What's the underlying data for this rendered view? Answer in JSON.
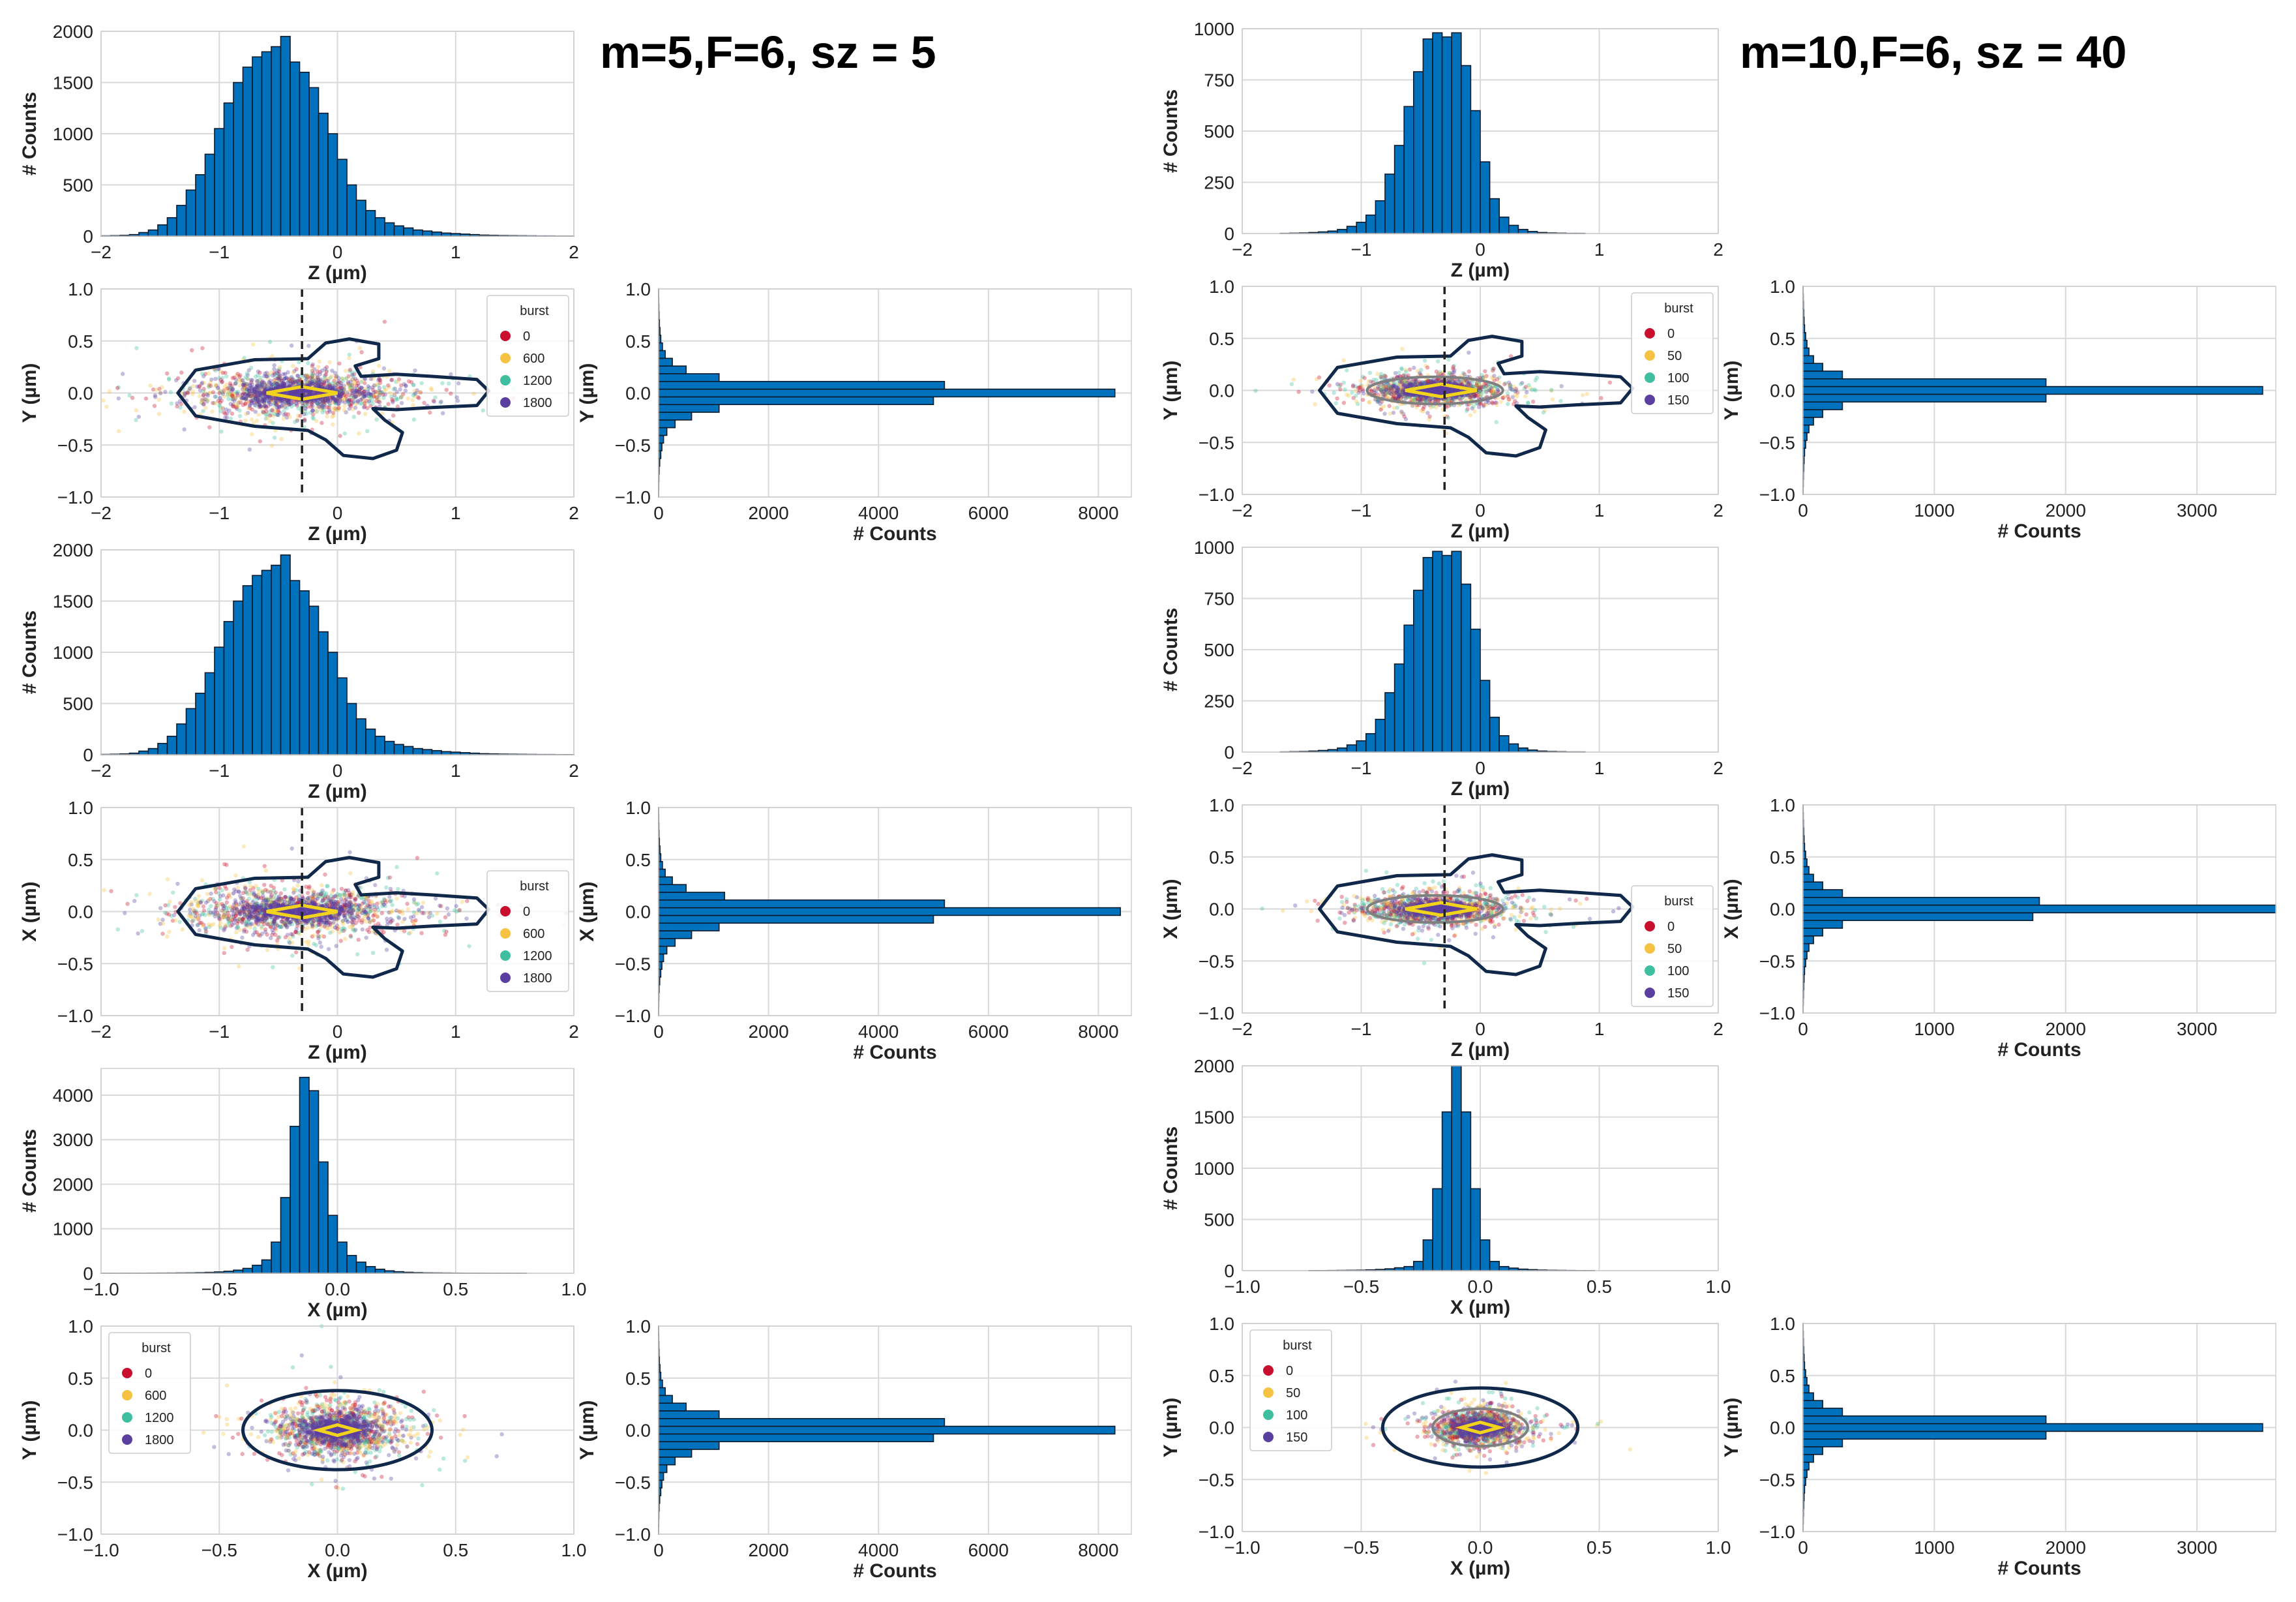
{
  "colors": {
    "bar_fill": "#0072BD",
    "bar_edge": "#0d1a2b",
    "grid": "#d9d9d9",
    "contour_outer": "#10284a",
    "contour_mid": "#7f7f7f",
    "contour_inner": "#f2d31b",
    "dashed_line": "#222222",
    "burst": [
      "#c8102e",
      "#f5c242",
      "#3fbf9f",
      "#5b3fa0"
    ]
  },
  "titles": {
    "left": "m=5,F=6, sz = 5",
    "right": "m=10,F=6, sz = 40"
  },
  "chart_data": [
    {
      "id": "L-hist-z-1",
      "type": "bar",
      "title": "",
      "xlabel": "Z (µm)",
      "ylabel": "# Counts",
      "xlim": [
        -2,
        2
      ],
      "ylim": [
        0,
        2000
      ],
      "xticks": [
        -2,
        -1,
        0,
        1,
        2
      ],
      "yticks": [
        0,
        500,
        1000,
        1500,
        2000
      ],
      "bin_edges": [
        -2,
        2
      ],
      "bins": 50,
      "values": [
        3,
        5,
        8,
        15,
        35,
        60,
        110,
        180,
        300,
        450,
        600,
        800,
        1050,
        1300,
        1500,
        1650,
        1750,
        1800,
        1850,
        1950,
        1700,
        1600,
        1450,
        1200,
        1000,
        750,
        500,
        350,
        250,
        180,
        130,
        100,
        80,
        60,
        50,
        40,
        30,
        25,
        20,
        15,
        10,
        8,
        6,
        5,
        4,
        3,
        2,
        2,
        1,
        1
      ]
    },
    {
      "id": "L-scatter-yz",
      "type": "scatter",
      "xlabel": "Z (µm)",
      "ylabel": "Y (µm)",
      "xlim": [
        -2,
        2
      ],
      "ylim": [
        -1,
        1
      ],
      "xticks": [
        -2,
        -1,
        0,
        1,
        2
      ],
      "yticks": [
        -1.0,
        -0.5,
        0.0,
        0.5,
        1.0
      ],
      "shape": "lobed",
      "vline_x": -0.3,
      "center": [
        -0.35,
        0
      ],
      "spread": [
        0.45,
        0.11
      ],
      "legend": {
        "title": "burst",
        "position": "upper-right",
        "labels": [
          "0",
          "600",
          "1200",
          "1800"
        ]
      }
    },
    {
      "id": "L-hist-y-1",
      "type": "bar",
      "orientation": "horizontal",
      "xlabel": "# Counts",
      "ylabel": "Y (µm)",
      "xlim": [
        0,
        8600
      ],
      "ylim": [
        -1,
        1
      ],
      "xticks": [
        0,
        2000,
        4000,
        6000,
        8000
      ],
      "yticks": [
        -1.0,
        -0.5,
        0.0,
        0.5,
        1.0
      ],
      "bin_edges": [
        -1,
        1
      ],
      "bins": 27,
      "values": [
        2,
        3,
        5,
        10,
        20,
        40,
        60,
        90,
        150,
        300,
        600,
        1100,
        5000,
        8300,
        5200,
        1100,
        500,
        250,
        120,
        70,
        40,
        25,
        15,
        8,
        5,
        3,
        2
      ]
    },
    {
      "id": "L-hist-z-2",
      "type": "bar",
      "xlabel": "Z (µm)",
      "ylabel": "# Counts",
      "xlim": [
        -2,
        2
      ],
      "ylim": [
        0,
        2000
      ],
      "xticks": [
        -2,
        -1,
        0,
        1,
        2
      ],
      "yticks": [
        0,
        500,
        1000,
        1500,
        2000
      ],
      "bin_edges": [
        -2,
        2
      ],
      "bins": 50,
      "values": [
        3,
        5,
        8,
        15,
        35,
        60,
        110,
        180,
        300,
        450,
        600,
        800,
        1050,
        1300,
        1500,
        1650,
        1750,
        1800,
        1850,
        1950,
        1700,
        1600,
        1450,
        1200,
        1000,
        750,
        500,
        350,
        250,
        180,
        130,
        100,
        80,
        60,
        50,
        40,
        30,
        25,
        20,
        15,
        10,
        8,
        6,
        5,
        4,
        3,
        2,
        2,
        1,
        1
      ]
    },
    {
      "id": "L-scatter-xz",
      "type": "scatter",
      "xlabel": "Z (µm)",
      "ylabel": "X (µm)",
      "xlim": [
        -2,
        2
      ],
      "ylim": [
        -1,
        1
      ],
      "xticks": [
        -2,
        -1,
        0,
        1,
        2
      ],
      "yticks": [
        -1.0,
        -0.5,
        0.0,
        0.5,
        1.0
      ],
      "shape": "lobed",
      "vline_x": -0.3,
      "center": [
        -0.35,
        0
      ],
      "spread": [
        0.45,
        0.11
      ],
      "legend": {
        "title": "burst",
        "position": "right",
        "labels": [
          "0",
          "600",
          "1200",
          "1800"
        ]
      }
    },
    {
      "id": "L-hist-x-1",
      "type": "bar",
      "orientation": "horizontal",
      "xlabel": "# Counts",
      "ylabel": "X (µm)",
      "xlim": [
        0,
        8600
      ],
      "ylim": [
        -1,
        1
      ],
      "xticks": [
        0,
        2000,
        4000,
        6000,
        8000
      ],
      "yticks": [
        -1.0,
        -0.5,
        0.0,
        0.5,
        1.0
      ],
      "bin_edges": [
        -1,
        1
      ],
      "bins": 27,
      "values": [
        2,
        3,
        5,
        10,
        20,
        40,
        60,
        90,
        150,
        300,
        600,
        1100,
        5000,
        8400,
        5200,
        1200,
        500,
        250,
        120,
        70,
        40,
        25,
        15,
        8,
        5,
        3,
        2
      ]
    },
    {
      "id": "L-hist-x-2",
      "type": "bar",
      "xlabel": "X (µm)",
      "ylabel": "# Counts",
      "xlim": [
        -1,
        1
      ],
      "ylim": [
        0,
        4600
      ],
      "xticks": [
        -1.0,
        -0.5,
        0.0,
        0.5,
        1.0
      ],
      "yticks": [
        0,
        1000,
        2000,
        3000,
        4000
      ],
      "bin_edges": [
        -1,
        1
      ],
      "bins": 50,
      "values": [
        1,
        1,
        2,
        2,
        3,
        4,
        5,
        6,
        8,
        10,
        14,
        20,
        30,
        45,
        70,
        110,
        180,
        300,
        700,
        1700,
        3300,
        4400,
        4100,
        2500,
        1300,
        700,
        400,
        250,
        150,
        90,
        55,
        35,
        22,
        15,
        10,
        8,
        6,
        4,
        3,
        2,
        2,
        1,
        1,
        1,
        1,
        0,
        0,
        0,
        0,
        0
      ]
    },
    {
      "id": "L-scatter-yx",
      "type": "scatter",
      "xlabel": "X (µm)",
      "ylabel": "Y (µm)",
      "xlim": [
        -1,
        1
      ],
      "ylim": [
        -1,
        1
      ],
      "xticks": [
        -1.0,
        -0.5,
        0.0,
        0.5,
        1.0
      ],
      "yticks": [
        -1.0,
        -0.5,
        0.0,
        0.5,
        1.0
      ],
      "shape": "ellipse",
      "center": [
        0,
        0
      ],
      "spread": [
        0.13,
        0.12
      ],
      "legend": {
        "title": "burst",
        "position": "upper-left",
        "labels": [
          "0",
          "600",
          "1200",
          "1800"
        ]
      }
    },
    {
      "id": "L-hist-y-2",
      "type": "bar",
      "orientation": "horizontal",
      "xlabel": "# Counts",
      "ylabel": "Y (µm)",
      "xlim": [
        0,
        8600
      ],
      "ylim": [
        -1,
        1
      ],
      "xticks": [
        0,
        2000,
        4000,
        6000,
        8000
      ],
      "yticks": [
        -1.0,
        -0.5,
        0.0,
        0.5,
        1.0
      ],
      "bin_edges": [
        -1,
        1
      ],
      "bins": 27,
      "values": [
        2,
        3,
        5,
        10,
        20,
        40,
        60,
        90,
        150,
        300,
        600,
        1100,
        5000,
        8300,
        5200,
        1100,
        500,
        250,
        120,
        70,
        40,
        25,
        15,
        8,
        5,
        3,
        2
      ]
    },
    {
      "id": "R-hist-z-1",
      "type": "bar",
      "xlabel": "Z (µm)",
      "ylabel": "# Counts",
      "xlim": [
        -2,
        2
      ],
      "ylim": [
        0,
        1000
      ],
      "xticks": [
        -2,
        -1,
        0,
        1,
        2
      ],
      "yticks": [
        0,
        250,
        500,
        750,
        1000
      ],
      "bin_edges": [
        -2,
        2
      ],
      "bins": 50,
      "values": [
        0,
        0,
        0,
        0,
        1,
        2,
        3,
        5,
        8,
        12,
        20,
        35,
        55,
        90,
        160,
        290,
        430,
        620,
        790,
        950,
        980,
        960,
        980,
        820,
        600,
        350,
        170,
        80,
        40,
        20,
        10,
        5,
        3,
        2,
        1,
        1,
        0,
        0,
        0,
        0,
        0,
        0,
        0,
        0,
        0,
        0,
        0,
        0,
        0,
        0
      ]
    },
    {
      "id": "R-scatter-yz",
      "type": "scatter",
      "xlabel": "Z (µm)",
      "ylabel": "Y (µm)",
      "xlim": [
        -2,
        2
      ],
      "ylim": [
        -1,
        1
      ],
      "xticks": [
        -2,
        -1,
        0,
        1,
        2
      ],
      "yticks": [
        -1.0,
        -0.5,
        0.0,
        0.5,
        1.0
      ],
      "shape": "lobed",
      "vline_x": -0.3,
      "center": [
        -0.38,
        0
      ],
      "spread": [
        0.28,
        0.07
      ],
      "has_mid": true,
      "legend": {
        "title": "burst",
        "position": "upper-right",
        "labels": [
          "0",
          "50",
          "100",
          "150"
        ]
      }
    },
    {
      "id": "R-hist-y-1",
      "type": "bar",
      "orientation": "horizontal",
      "xlabel": "# Counts",
      "ylabel": "Y (µm)",
      "xlim": [
        0,
        3600
      ],
      "ylim": [
        -1,
        1
      ],
      "xticks": [
        0,
        1000,
        2000,
        3000
      ],
      "yticks": [
        -1.0,
        -0.5,
        0.0,
        0.5,
        1.0
      ],
      "bin_edges": [
        -1,
        1
      ],
      "bins": 27,
      "values": [
        1,
        2,
        3,
        5,
        8,
        12,
        20,
        30,
        45,
        80,
        150,
        300,
        1850,
        3500,
        1850,
        300,
        150,
        80,
        45,
        30,
        20,
        12,
        8,
        5,
        3,
        2,
        1
      ]
    },
    {
      "id": "R-hist-z-2",
      "type": "bar",
      "xlabel": "Z (µm)",
      "ylabel": "# Counts",
      "xlim": [
        -2,
        2
      ],
      "ylim": [
        0,
        1000
      ],
      "xticks": [
        -2,
        -1,
        0,
        1,
        2
      ],
      "yticks": [
        0,
        250,
        500,
        750,
        1000
      ],
      "bin_edges": [
        -2,
        2
      ],
      "bins": 50,
      "values": [
        0,
        0,
        0,
        0,
        1,
        2,
        3,
        5,
        8,
        12,
        20,
        35,
        55,
        90,
        160,
        290,
        430,
        620,
        790,
        950,
        980,
        960,
        980,
        820,
        600,
        350,
        170,
        80,
        40,
        20,
        10,
        5,
        3,
        2,
        1,
        1,
        0,
        0,
        0,
        0,
        0,
        0,
        0,
        0,
        0,
        0,
        0,
        0,
        0,
        0
      ]
    },
    {
      "id": "R-scatter-xz",
      "type": "scatter",
      "xlabel": "Z (µm)",
      "ylabel": "X (µm)",
      "xlim": [
        -2,
        2
      ],
      "ylim": [
        -1,
        1
      ],
      "xticks": [
        -2,
        -1,
        0,
        1,
        2
      ],
      "yticks": [
        -1.0,
        -0.5,
        0.0,
        0.5,
        1.0
      ],
      "shape": "lobed",
      "vline_x": -0.3,
      "center": [
        -0.38,
        0
      ],
      "spread": [
        0.28,
        0.07
      ],
      "has_mid": true,
      "legend": {
        "title": "burst",
        "position": "lower-right",
        "labels": [
          "0",
          "50",
          "100",
          "150"
        ]
      }
    },
    {
      "id": "R-hist-x-1",
      "type": "bar",
      "orientation": "horizontal",
      "xlabel": "# Counts",
      "ylabel": "X (µm)",
      "xlim": [
        0,
        3600
      ],
      "ylim": [
        -1,
        1
      ],
      "xticks": [
        0,
        1000,
        2000,
        3000
      ],
      "yticks": [
        -1.0,
        -0.5,
        0.0,
        0.5,
        1.0
      ],
      "bin_edges": [
        -1,
        1
      ],
      "bins": 27,
      "values": [
        1,
        2,
        3,
        5,
        8,
        12,
        20,
        30,
        45,
        80,
        150,
        300,
        1750,
        3600,
        1800,
        300,
        150,
        80,
        45,
        30,
        20,
        12,
        8,
        5,
        3,
        2,
        1
      ]
    },
    {
      "id": "R-hist-x-2",
      "type": "bar",
      "xlabel": "X (µm)",
      "ylabel": "# Counts",
      "xlim": [
        -1,
        1
      ],
      "ylim": [
        0,
        2000
      ],
      "xticks": [
        -1.0,
        -0.5,
        0.0,
        0.5,
        1.0
      ],
      "yticks": [
        0,
        500,
        1000,
        1500,
        2000
      ],
      "bin_edges": [
        -1,
        1
      ],
      "bins": 50,
      "values": [
        0,
        0,
        0,
        0,
        0,
        0,
        0,
        1,
        1,
        2,
        3,
        4,
        5,
        8,
        12,
        18,
        28,
        40,
        90,
        300,
        800,
        1550,
        2000,
        1550,
        800,
        300,
        90,
        40,
        25,
        15,
        10,
        6,
        4,
        3,
        2,
        1,
        1,
        0,
        0,
        0,
        0,
        0,
        0,
        0,
        0,
        0,
        0,
        0,
        0,
        0
      ]
    },
    {
      "id": "R-scatter-yx",
      "type": "scatter",
      "xlabel": "X (µm)",
      "ylabel": "Y (µm)",
      "xlim": [
        -1,
        1
      ],
      "ylim": [
        -1,
        1
      ],
      "xticks": [
        -1.0,
        -0.5,
        0.0,
        0.5,
        1.0
      ],
      "yticks": [
        -1.0,
        -0.5,
        0.0,
        0.5,
        1.0
      ],
      "shape": "ellipse",
      "center": [
        0,
        0
      ],
      "spread": [
        0.09,
        0.08
      ],
      "has_mid": true,
      "legend": {
        "title": "burst",
        "position": "upper-left",
        "labels": [
          "0",
          "50",
          "100",
          "150"
        ]
      }
    },
    {
      "id": "R-hist-y-2",
      "type": "bar",
      "orientation": "horizontal",
      "xlabel": "# Counts",
      "ylabel": "Y (µm)",
      "xlim": [
        0,
        3600
      ],
      "ylim": [
        -1,
        1
      ],
      "xticks": [
        0,
        1000,
        2000,
        3000
      ],
      "yticks": [
        -1.0,
        -0.5,
        0.0,
        0.5,
        1.0
      ],
      "bin_edges": [
        -1,
        1
      ],
      "bins": 27,
      "values": [
        1,
        2,
        3,
        5,
        8,
        12,
        20,
        30,
        45,
        80,
        150,
        300,
        1850,
        3500,
        1850,
        300,
        150,
        80,
        45,
        30,
        20,
        12,
        8,
        5,
        3,
        2,
        1
      ]
    }
  ]
}
